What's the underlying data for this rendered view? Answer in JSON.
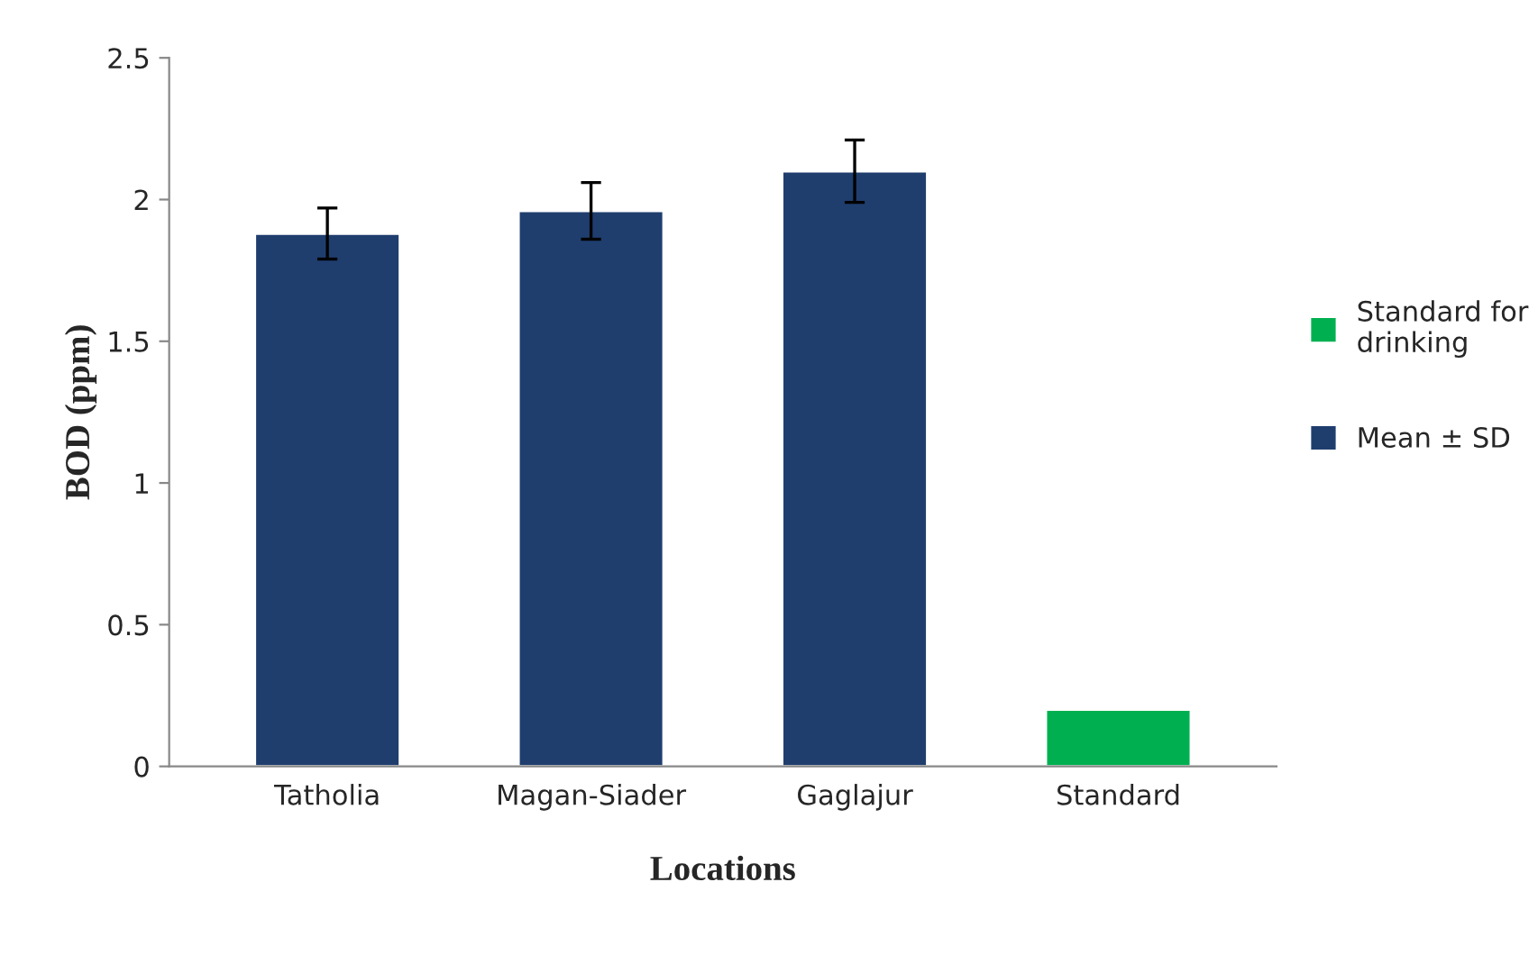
{
  "chart_data": {
    "type": "bar",
    "xlabel": "Locations",
    "ylabel": "BOD (ppm)",
    "categories": [
      "Tatholia",
      "Magan-Siader",
      "Gaglajur",
      "Standard"
    ],
    "series": [
      {
        "name": "Standard for drinking",
        "color": "#00b050",
        "values": [
          null,
          null,
          null,
          0.2
        ]
      },
      {
        "name": "Mean ± SD",
        "color": "#1f3e6e",
        "values": [
          1.88,
          1.96,
          2.1,
          null
        ],
        "errors": [
          0.09,
          0.1,
          0.11,
          null
        ]
      }
    ],
    "ylim": [
      0,
      2.5
    ],
    "yticks": [
      0,
      0.5,
      1,
      1.5,
      2,
      2.5
    ],
    "grid": false,
    "legend": "right"
  }
}
